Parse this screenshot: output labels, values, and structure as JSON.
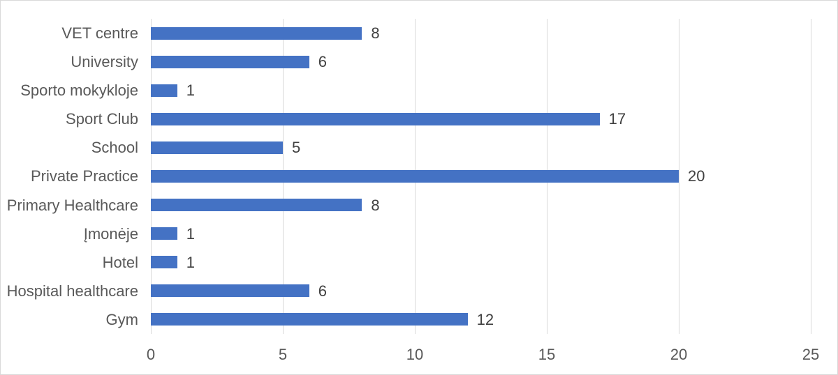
{
  "chart_data": {
    "type": "bar",
    "orientation": "horizontal",
    "title": "",
    "xlabel": "",
    "ylabel": "",
    "categories": [
      "VET centre",
      "University",
      "Sporto mokykloje",
      "Sport Club",
      "School",
      "Private Practice",
      "Primary Healthcare",
      "Įmonėje",
      "Hotel",
      "Hospital healthcare",
      "Gym"
    ],
    "values": [
      8,
      6,
      1,
      17,
      5,
      20,
      8,
      1,
      1,
      6,
      12
    ],
    "data_labels": [
      "8",
      "6",
      "1",
      "17",
      "5",
      "20",
      "8",
      "1",
      "1",
      "6",
      "12"
    ],
    "xlim": [
      0,
      25
    ],
    "xticks": [
      0,
      5,
      10,
      15,
      20,
      25
    ],
    "grid": "vertical-gridlines",
    "legend": "none",
    "colors": {
      "bar": "#4472C4",
      "gridline": "#D9D9D9",
      "category_label": "#595959",
      "data_label": "#404040",
      "tick_label": "#595959",
      "background": "#FFFFFF",
      "frame_border": "#D9D9D9"
    }
  }
}
